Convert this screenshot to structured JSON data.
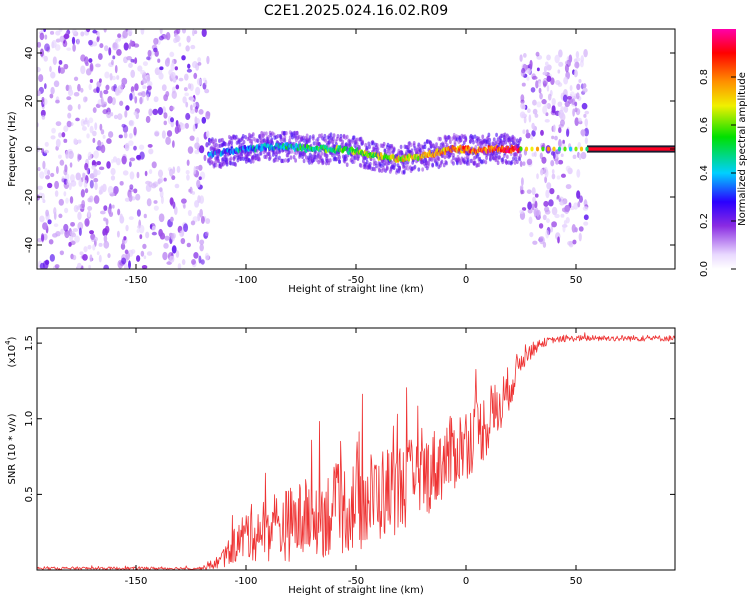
{
  "title": "C2E1.2025.024.16.02.R09",
  "chart_data": [
    {
      "type": "heatmap",
      "xlabel": "Height of straight line (km)",
      "ylabel": "Frequency (Hz)",
      "xlim": [
        -195,
        95
      ],
      "ylim": [
        -50,
        50
      ],
      "x_ticks": [
        "-150",
        "-100",
        "-50",
        "0",
        "50"
      ],
      "y_ticks": [
        "-40",
        "-20",
        "0",
        "20",
        "40"
      ],
      "colorbar": {
        "label": "Normalized spectral amplitude",
        "range": [
          0,
          1
        ],
        "ticks": [
          "0.0",
          "0.2",
          "0.4",
          "0.6",
          "0.8"
        ]
      },
      "regions": [
        {
          "x": [
            -195,
            -117
          ],
          "freq_range": [
            -50,
            50
          ],
          "amplitude": "low, noise-dominated"
        },
        {
          "x": [
            -117,
            25
          ],
          "freq_range": [
            -8,
            8
          ],
          "amplitude": "signal band near 0 Hz, rising from ~0.3 to ~0.9"
        },
        {
          "x": [
            25,
            55
          ],
          "freq_range": [
            -40,
            40
          ],
          "amplitude": "noisy, with line near 0 Hz"
        },
        {
          "x": [
            55,
            95
          ],
          "freq_range": [
            -1,
            1
          ],
          "amplitude": "strong line at 0 Hz, ~1.0"
        }
      ],
      "ridge": {
        "x": [
          -115,
          -100,
          -90,
          -80,
          -70,
          -60,
          -50,
          -40,
          -30,
          -20,
          -10,
          -5,
          0,
          5,
          10,
          20,
          25,
          55,
          90
        ],
        "y": [
          -2,
          0,
          1,
          1,
          0,
          0,
          -1,
          -3,
          -4,
          -3,
          -1,
          0,
          0,
          -1,
          0,
          0,
          0,
          0,
          0
        ]
      }
    },
    {
      "type": "line",
      "xlabel": "Height of straight line (km)",
      "ylabel": "SNR (10 * v/v)",
      "y_multiplier": "(x10",
      "y_multiplier_exp": "4",
      "xlim": [
        -195,
        95
      ],
      "ylim": [
        0,
        1.6
      ],
      "x_ticks": [
        "-150",
        "-100",
        "-50",
        "0",
        "50"
      ],
      "y_ticks": [
        "0.5",
        "1.0",
        "1.5"
      ],
      "color": "#ee3333",
      "series": [
        {
          "x": [
            -195,
            -150,
            -120,
            -112,
            -105,
            -100,
            -90,
            -80,
            -70,
            -60,
            -50,
            -40,
            -30,
            -20,
            -10,
            0,
            10,
            15,
            20,
            25,
            30,
            35,
            40,
            50,
            60,
            70,
            80,
            90,
            95
          ],
          "y": [
            0.01,
            0.01,
            0.01,
            0.05,
            0.15,
            0.22,
            0.25,
            0.28,
            0.32,
            0.36,
            0.4,
            0.46,
            0.52,
            0.58,
            0.7,
            0.82,
            0.95,
            1.05,
            1.2,
            1.38,
            1.45,
            1.5,
            1.52,
            1.53,
            1.53,
            1.53,
            1.53,
            1.53,
            1.53
          ],
          "spread": [
            0.01,
            0.01,
            0.01,
            0.05,
            0.12,
            0.18,
            0.22,
            0.25,
            0.28,
            0.3,
            0.32,
            0.32,
            0.3,
            0.28,
            0.26,
            0.25,
            0.22,
            0.2,
            0.15,
            0.08,
            0.05,
            0.03,
            0.02,
            0.02,
            0.02,
            0.02,
            0.02,
            0.02,
            0.02
          ]
        }
      ]
    }
  ]
}
